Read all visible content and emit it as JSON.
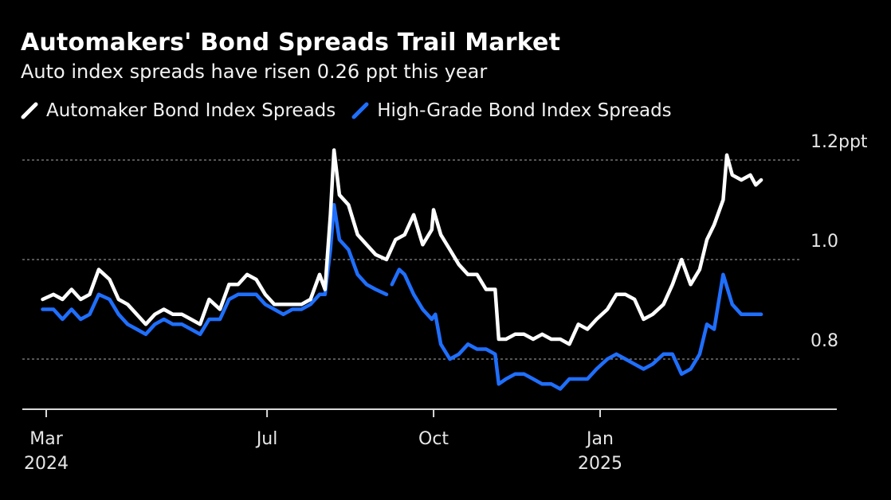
{
  "header": {
    "title": "Automakers' Bond Spreads Trail Market",
    "subtitle": "Auto index spreads have risen 0.26 ppt this year"
  },
  "legend": {
    "items": [
      {
        "label": "Automaker Bond Index Spreads",
        "color": "#ffffff"
      },
      {
        "label": "High-Grade Bond Index Spreads",
        "color": "#1f6fff"
      }
    ]
  },
  "chart_data": {
    "type": "line",
    "title": "Automakers' Bond Spreads Trail Market",
    "subtitle": "Auto index spreads have risen 0.26 ppt this year",
    "y_unit": "ppt",
    "ylim": [
      0.7,
      1.21
    ],
    "y_ticks": [
      {
        "value": 0.8,
        "label": "0.8"
      },
      {
        "value": 1.0,
        "label": "1.0"
      },
      {
        "value": 1.2,
        "label": "1.2ppt"
      }
    ],
    "xlim": [
      "2024-02-26",
      "2025-04-15"
    ],
    "x_ticks": [
      {
        "date": "2024-03-01",
        "label": "Mar",
        "sublabel": "2024"
      },
      {
        "date": "2024-07-01",
        "label": "Jul",
        "sublabel": ""
      },
      {
        "date": "2024-10-01",
        "label": "Oct",
        "sublabel": ""
      },
      {
        "date": "2025-01-01",
        "label": "Jan",
        "sublabel": "2025"
      }
    ],
    "grid": true,
    "legend_position": "top-left",
    "series": [
      {
        "name": "Automaker Bond Index Spreads",
        "color": "#ffffff",
        "points": [
          [
            "2024-02-28",
            0.92
          ],
          [
            "2024-03-05",
            0.93
          ],
          [
            "2024-03-10",
            0.92
          ],
          [
            "2024-03-15",
            0.94
          ],
          [
            "2024-03-20",
            0.92
          ],
          [
            "2024-03-25",
            0.93
          ],
          [
            "2024-03-30",
            0.98
          ],
          [
            "2024-04-05",
            0.96
          ],
          [
            "2024-04-10",
            0.92
          ],
          [
            "2024-04-15",
            0.91
          ],
          [
            "2024-04-20",
            0.89
          ],
          [
            "2024-04-25",
            0.87
          ],
          [
            "2024-04-30",
            0.89
          ],
          [
            "2024-05-05",
            0.9
          ],
          [
            "2024-05-10",
            0.89
          ],
          [
            "2024-05-15",
            0.89
          ],
          [
            "2024-05-20",
            0.88
          ],
          [
            "2024-05-25",
            0.87
          ],
          [
            "2024-05-30",
            0.92
          ],
          [
            "2024-06-05",
            0.9
          ],
          [
            "2024-06-10",
            0.95
          ],
          [
            "2024-06-15",
            0.95
          ],
          [
            "2024-06-20",
            0.97
          ],
          [
            "2024-06-25",
            0.96
          ],
          [
            "2024-06-30",
            0.93
          ],
          [
            "2024-07-05",
            0.91
          ],
          [
            "2024-07-10",
            0.91
          ],
          [
            "2024-07-15",
            0.91
          ],
          [
            "2024-07-20",
            0.91
          ],
          [
            "2024-07-25",
            0.92
          ],
          [
            "2024-07-30",
            0.97
          ],
          [
            "2024-08-02",
            0.94
          ],
          [
            "2024-08-05",
            1.09
          ],
          [
            "2024-08-07",
            1.22
          ],
          [
            "2024-08-10",
            1.13
          ],
          [
            "2024-08-15",
            1.11
          ],
          [
            "2024-08-20",
            1.05
          ],
          [
            "2024-08-25",
            1.03
          ],
          [
            "2024-08-30",
            1.01
          ],
          [
            "2024-09-05",
            1.0
          ],
          [
            "2024-09-10",
            1.04
          ],
          [
            "2024-09-15",
            1.05
          ],
          [
            "2024-09-20",
            1.09
          ],
          [
            "2024-09-25",
            1.03
          ],
          [
            "2024-09-30",
            1.06
          ],
          [
            "2024-10-01",
            1.1
          ],
          [
            "2024-10-05",
            1.05
          ],
          [
            "2024-10-10",
            1.02
          ],
          [
            "2024-10-15",
            0.99
          ],
          [
            "2024-10-20",
            0.97
          ],
          [
            "2024-10-25",
            0.97
          ],
          [
            "2024-10-30",
            0.94
          ],
          [
            "2024-11-04",
            0.94
          ],
          [
            "2024-11-06",
            0.84
          ],
          [
            "2024-11-10",
            0.84
          ],
          [
            "2024-11-15",
            0.85
          ],
          [
            "2024-11-20",
            0.85
          ],
          [
            "2024-11-25",
            0.84
          ],
          [
            "2024-11-30",
            0.85
          ],
          [
            "2024-12-05",
            0.84
          ],
          [
            "2024-12-10",
            0.84
          ],
          [
            "2024-12-15",
            0.83
          ],
          [
            "2024-12-20",
            0.87
          ],
          [
            "2024-12-25",
            0.86
          ],
          [
            "2024-12-30",
            0.88
          ],
          [
            "2025-01-05",
            0.9
          ],
          [
            "2025-01-10",
            0.93
          ],
          [
            "2025-01-15",
            0.93
          ],
          [
            "2025-01-20",
            0.92
          ],
          [
            "2025-01-25",
            0.88
          ],
          [
            "2025-01-30",
            0.89
          ],
          [
            "2025-02-05",
            0.91
          ],
          [
            "2025-02-10",
            0.95
          ],
          [
            "2025-02-15",
            1.0
          ],
          [
            "2025-02-20",
            0.95
          ],
          [
            "2025-02-25",
            0.98
          ],
          [
            "2025-03-01",
            1.04
          ],
          [
            "2025-03-05",
            1.07
          ],
          [
            "2025-03-10",
            1.12
          ],
          [
            "2025-03-12",
            1.21
          ],
          [
            "2025-03-15",
            1.17
          ],
          [
            "2025-03-20",
            1.16
          ],
          [
            "2025-03-25",
            1.17
          ],
          [
            "2025-03-28",
            1.15
          ],
          [
            "2025-03-31",
            1.16
          ]
        ]
      },
      {
        "name": "High-Grade Bond Index Spreads",
        "color": "#1f6fff",
        "points": [
          [
            "2024-02-28",
            0.9
          ],
          [
            "2024-03-05",
            0.9
          ],
          [
            "2024-03-10",
            0.88
          ],
          [
            "2024-03-15",
            0.9
          ],
          [
            "2024-03-20",
            0.88
          ],
          [
            "2024-03-25",
            0.89
          ],
          [
            "2024-03-30",
            0.93
          ],
          [
            "2024-04-05",
            0.92
          ],
          [
            "2024-04-10",
            0.89
          ],
          [
            "2024-04-15",
            0.87
          ],
          [
            "2024-04-20",
            0.86
          ],
          [
            "2024-04-25",
            0.85
          ],
          [
            "2024-04-30",
            0.87
          ],
          [
            "2024-05-05",
            0.88
          ],
          [
            "2024-05-10",
            0.87
          ],
          [
            "2024-05-15",
            0.87
          ],
          [
            "2024-05-20",
            0.86
          ],
          [
            "2024-05-25",
            0.85
          ],
          [
            "2024-05-30",
            0.88
          ],
          [
            "2024-06-05",
            0.88
          ],
          [
            "2024-06-10",
            0.92
          ],
          [
            "2024-06-15",
            0.93
          ],
          [
            "2024-06-20",
            0.93
          ],
          [
            "2024-06-25",
            0.93
          ],
          [
            "2024-06-30",
            0.91
          ],
          [
            "2024-07-05",
            0.9
          ],
          [
            "2024-07-10",
            0.89
          ],
          [
            "2024-07-15",
            0.9
          ],
          [
            "2024-07-20",
            0.9
          ],
          [
            "2024-07-25",
            0.91
          ],
          [
            "2024-07-30",
            0.93
          ],
          [
            "2024-08-02",
            0.93
          ],
          [
            "2024-08-05",
            1.02
          ],
          [
            "2024-08-07",
            1.11
          ],
          [
            "2024-08-10",
            1.04
          ],
          [
            "2024-08-15",
            1.02
          ],
          [
            "2024-08-20",
            0.97
          ],
          [
            "2024-08-25",
            0.95
          ],
          [
            "2024-08-30",
            0.94
          ],
          [
            "2024-09-05",
            0.93
          ],
          {
            "gap": true
          },
          [
            "2024-09-08",
            0.95
          ],
          [
            "2024-09-12",
            0.98
          ],
          [
            "2024-09-15",
            0.97
          ],
          [
            "2024-09-20",
            0.93
          ],
          [
            "2024-09-25",
            0.9
          ],
          [
            "2024-09-30",
            0.88
          ],
          [
            "2024-10-02",
            0.89
          ],
          [
            "2024-10-05",
            0.83
          ],
          [
            "2024-10-10",
            0.8
          ],
          [
            "2024-10-15",
            0.81
          ],
          [
            "2024-10-20",
            0.83
          ],
          [
            "2024-10-25",
            0.82
          ],
          [
            "2024-10-30",
            0.82
          ],
          [
            "2024-11-04",
            0.81
          ],
          [
            "2024-11-06",
            0.75
          ],
          [
            "2024-11-10",
            0.76
          ],
          [
            "2024-11-15",
            0.77
          ],
          [
            "2024-11-20",
            0.77
          ],
          [
            "2024-11-25",
            0.76
          ],
          [
            "2024-11-30",
            0.75
          ],
          [
            "2024-12-05",
            0.75
          ],
          [
            "2024-12-10",
            0.74
          ],
          [
            "2024-12-15",
            0.76
          ],
          [
            "2024-12-20",
            0.76
          ],
          [
            "2024-12-25",
            0.76
          ],
          [
            "2024-12-30",
            0.78
          ],
          [
            "2025-01-05",
            0.8
          ],
          [
            "2025-01-10",
            0.81
          ],
          [
            "2025-01-15",
            0.8
          ],
          [
            "2025-01-20",
            0.79
          ],
          [
            "2025-01-25",
            0.78
          ],
          [
            "2025-01-30",
            0.79
          ],
          [
            "2025-02-05",
            0.81
          ],
          [
            "2025-02-10",
            0.81
          ],
          [
            "2025-02-15",
            0.77
          ],
          [
            "2025-02-20",
            0.78
          ],
          [
            "2025-02-25",
            0.81
          ],
          [
            "2025-03-01",
            0.87
          ],
          [
            "2025-03-05",
            0.86
          ],
          [
            "2025-03-10",
            0.97
          ],
          [
            "2025-03-15",
            0.91
          ],
          [
            "2025-03-20",
            0.89
          ],
          [
            "2025-03-25",
            0.89
          ],
          [
            "2025-03-28",
            0.89
          ],
          [
            "2025-03-31",
            0.89
          ]
        ]
      }
    ]
  }
}
